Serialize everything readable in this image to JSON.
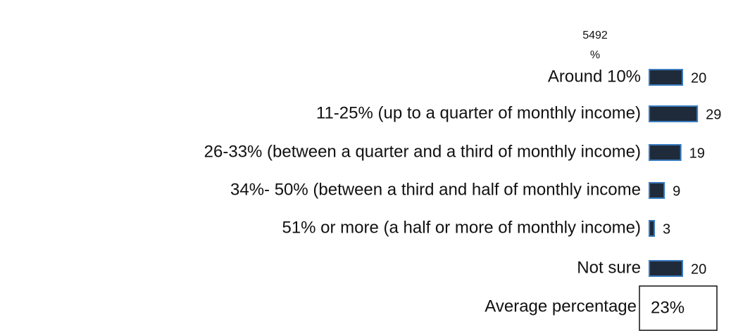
{
  "chart_data": {
    "type": "bar",
    "orientation": "horizontal",
    "column_header": [
      "5492",
      "%"
    ],
    "categories": [
      "Around 10%",
      "11-25% (up to a quarter of monthly income)",
      "26-33% (between a quarter and a third of monthly income)",
      "34%- 50% (between a third and half of monthly income",
      "51% or more (a half or more of monthly income)",
      "Not sure"
    ],
    "values": [
      20,
      29,
      19,
      9,
      3,
      20
    ],
    "color": "#1f2b3a",
    "edge_color": "#3a7cc0",
    "average": {
      "label": "Average percentage",
      "value": "23%"
    }
  }
}
